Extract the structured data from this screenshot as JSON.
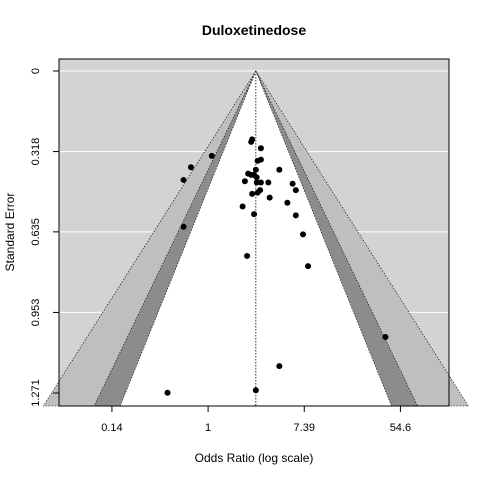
{
  "chart_data": {
    "type": "scatter",
    "subtype": "contour-enhanced funnel plot",
    "title": "Duloxetinedose",
    "xlabel": "Odds Ratio (log scale)",
    "ylabel": "Standard Error",
    "x_scale": "log",
    "x_ticks": [
      "0.14",
      "1",
      "7.39",
      "54.6"
    ],
    "x_tick_values": [
      0.1353,
      1,
      7.389,
      54.6
    ],
    "y_ticks": [
      "0",
      "0.318",
      "0.635",
      "0.953",
      "1.271"
    ],
    "y_tick_values": [
      0,
      0.318,
      0.635,
      0.953,
      1.271
    ],
    "y_reversed": true,
    "xlim": [
      0.045,
      150
    ],
    "ylim": [
      0,
      1.32
    ],
    "pooled_or": 2.7,
    "contour_levels": [
      0.9,
      0.95,
      0.99
    ],
    "grid": true,
    "points": [
      {
        "x": 2.5,
        "y": 0.27
      },
      {
        "x": 2.45,
        "y": 0.28
      },
      {
        "x": 3.0,
        "y": 0.305
      },
      {
        "x": 1.08,
        "y": 0.335
      },
      {
        "x": 2.8,
        "y": 0.355
      },
      {
        "x": 3.0,
        "y": 0.35
      },
      {
        "x": 0.7,
        "y": 0.38
      },
      {
        "x": 2.7,
        "y": 0.39
      },
      {
        "x": 2.3,
        "y": 0.405
      },
      {
        "x": 2.45,
        "y": 0.41
      },
      {
        "x": 4.4,
        "y": 0.39
      },
      {
        "x": 0.6,
        "y": 0.43
      },
      {
        "x": 2.6,
        "y": 0.41
      },
      {
        "x": 2.15,
        "y": 0.435
      },
      {
        "x": 2.75,
        "y": 0.42
      },
      {
        "x": 2.75,
        "y": 0.44
      },
      {
        "x": 3.0,
        "y": 0.44
      },
      {
        "x": 3.5,
        "y": 0.44
      },
      {
        "x": 5.8,
        "y": 0.445
      },
      {
        "x": 6.2,
        "y": 0.47
      },
      {
        "x": 2.5,
        "y": 0.485
      },
      {
        "x": 2.8,
        "y": 0.48
      },
      {
        "x": 2.95,
        "y": 0.47
      },
      {
        "x": 3.6,
        "y": 0.5
      },
      {
        "x": 5.2,
        "y": 0.52
      },
      {
        "x": 2.05,
        "y": 0.535
      },
      {
        "x": 2.6,
        "y": 0.565
      },
      {
        "x": 6.2,
        "y": 0.57
      },
      {
        "x": 0.6,
        "y": 0.615
      },
      {
        "x": 7.2,
        "y": 0.645
      },
      {
        "x": 2.25,
        "y": 0.73
      },
      {
        "x": 8.0,
        "y": 0.77
      },
      {
        "x": 40.0,
        "y": 1.05
      },
      {
        "x": 4.4,
        "y": 1.165
      },
      {
        "x": 0.43,
        "y": 1.27
      },
      {
        "x": 2.7,
        "y": 1.26
      }
    ]
  }
}
